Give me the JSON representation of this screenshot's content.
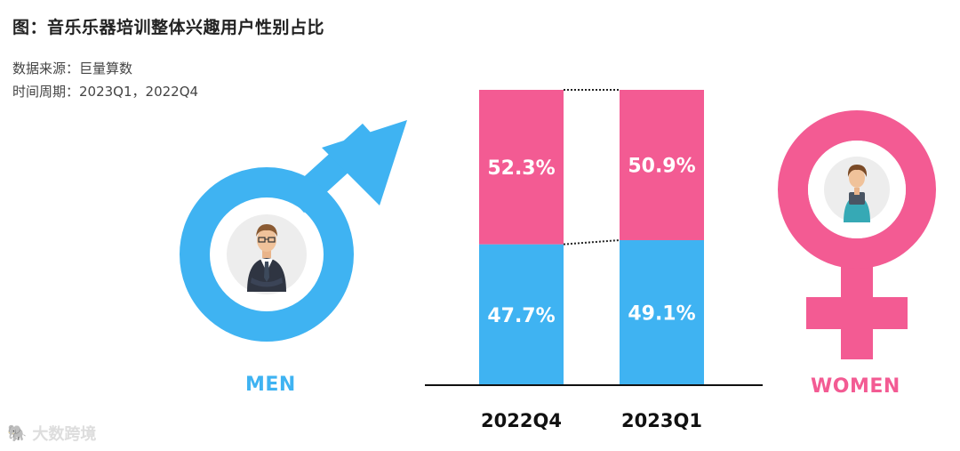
{
  "title": "图：音乐乐器培训整体兴趣用户性别占比",
  "source": "数据来源：巨量算数",
  "period": "时间周期：2023Q1，2022Q4",
  "men_label": "MEN",
  "women_label": "WOMEN",
  "watermark": "大数跨境",
  "colors": {
    "male": "#3fb3f2",
    "female": "#f35b93",
    "circle_bg": "#f2f2f2"
  },
  "chart_data": {
    "type": "bar",
    "stacked": true,
    "categories": [
      "2022Q4",
      "2023Q1"
    ],
    "series": [
      {
        "name": "MEN",
        "values": [
          47.7,
          49.1
        ],
        "labels": [
          "47.7%",
          "49.1%"
        ]
      },
      {
        "name": "WOMEN",
        "values": [
          52.3,
          50.9
        ],
        "labels": [
          "52.3%",
          "50.9%"
        ]
      }
    ],
    "ylim": [
      0,
      100
    ],
    "unit": "%"
  }
}
